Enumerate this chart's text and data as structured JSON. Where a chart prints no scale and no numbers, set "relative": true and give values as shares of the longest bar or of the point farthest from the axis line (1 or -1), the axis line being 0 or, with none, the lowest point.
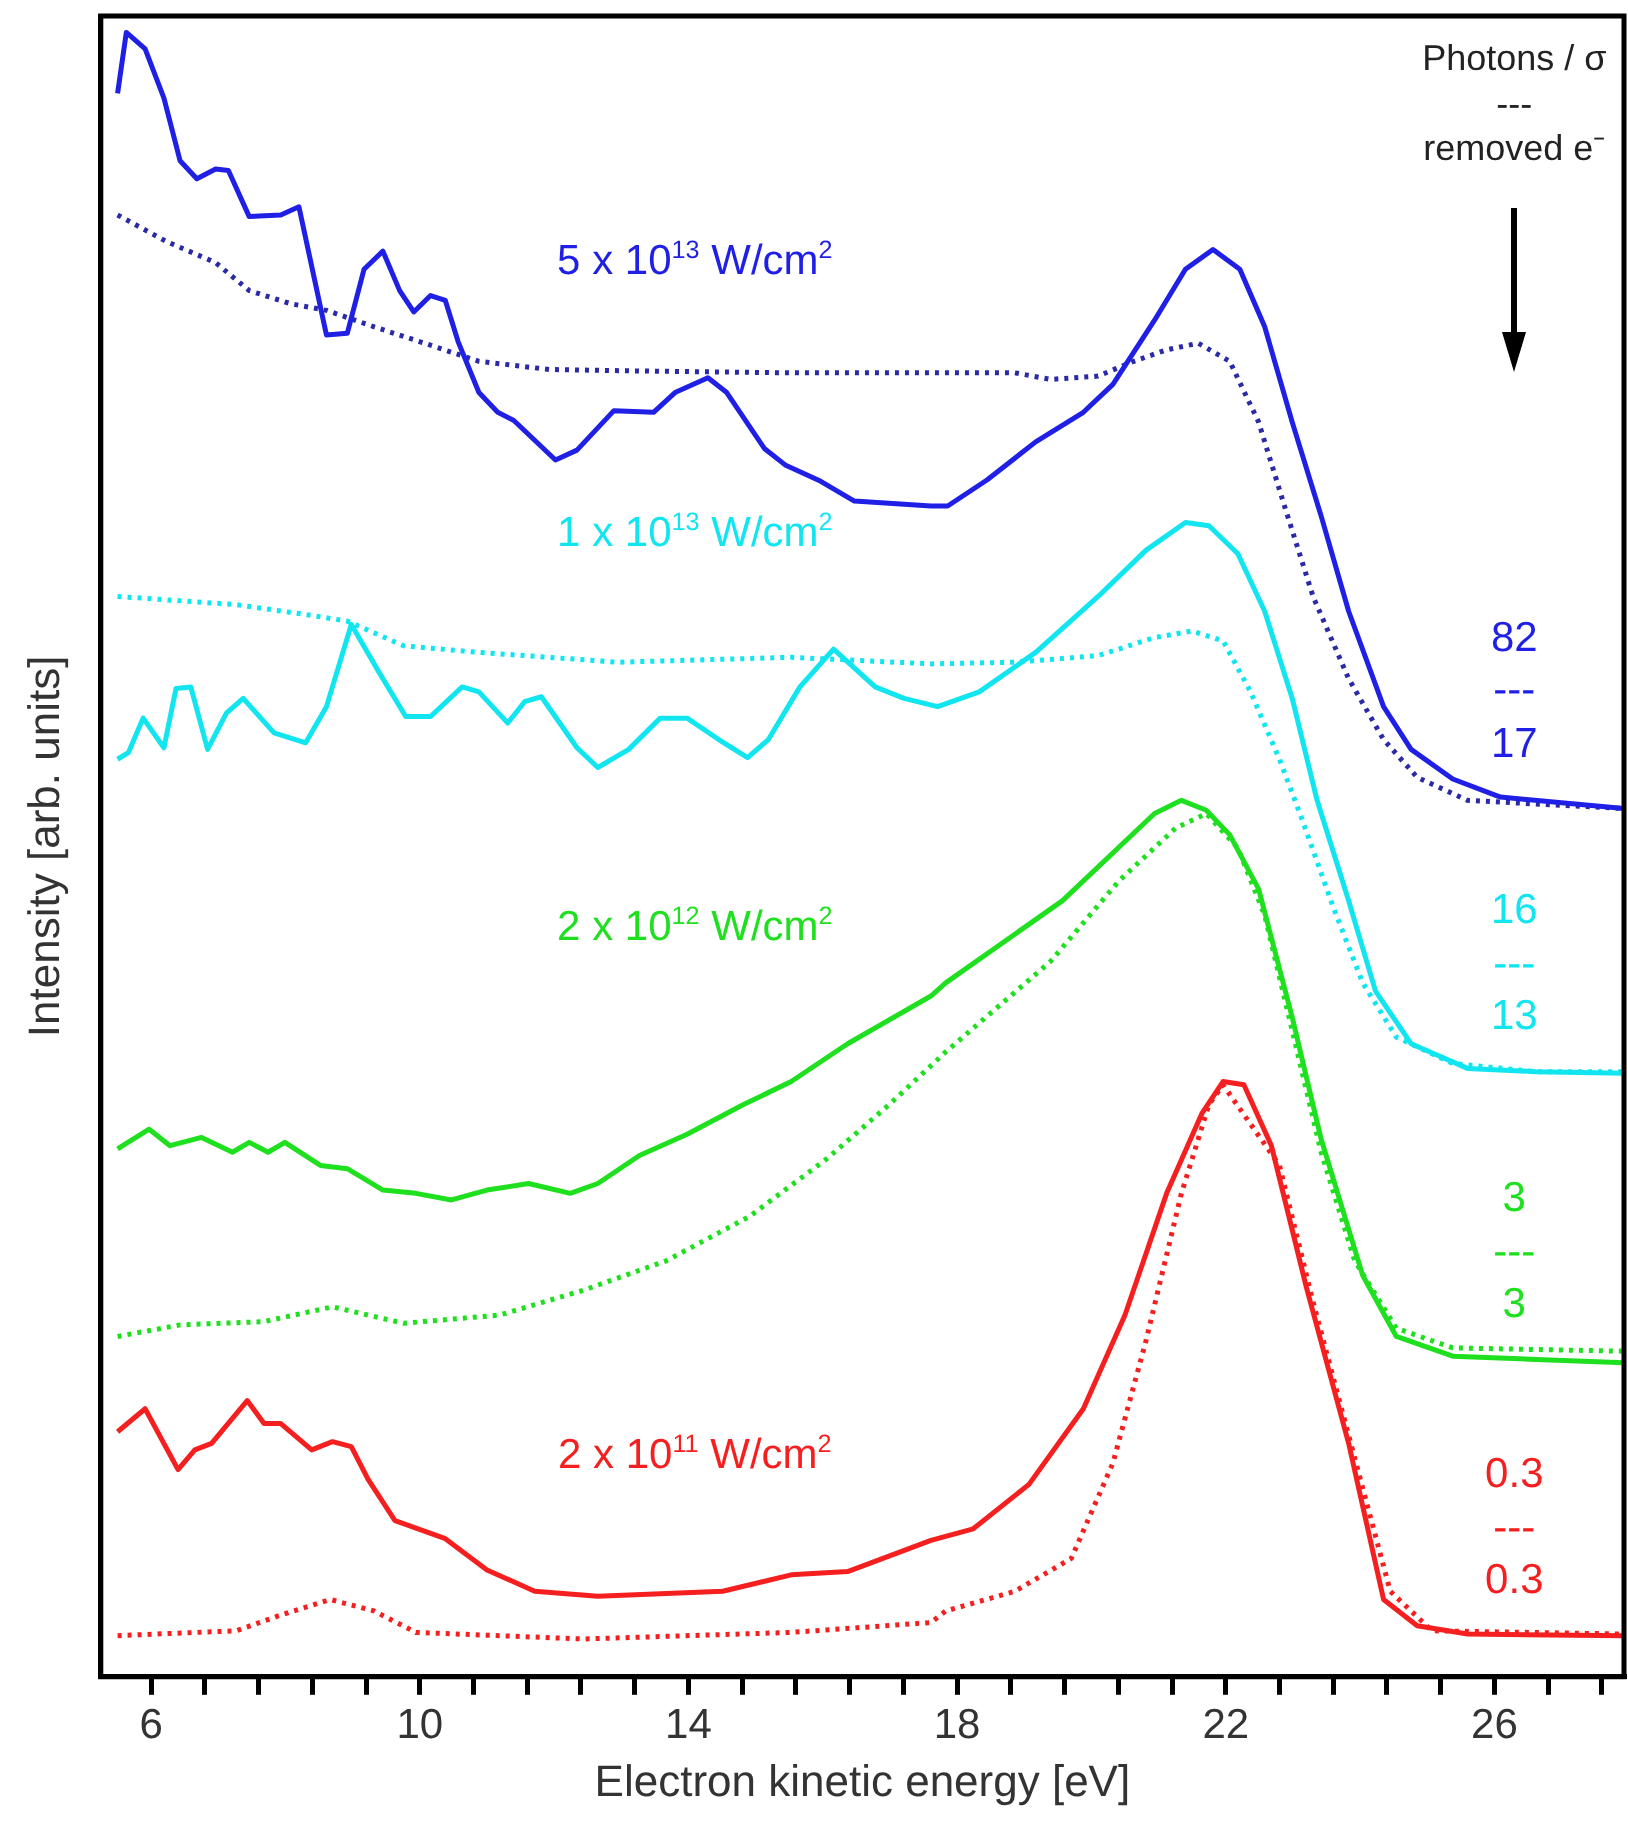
{
  "chart_data": {
    "type": "line",
    "relative": true,
    "xlabel": "Electron kinetic energy [eV]",
    "ylabel": "Intensity [arb. units]",
    "legend_title": "Photons / σ\n---\nremoved e⁻",
    "legend": false,
    "grid": false,
    "line_style": "solid",
    "xlim": [
      5.25,
      27.93
    ],
    "xticks": [
      6,
      {
        "value": 6.8,
        "label": null
      },
      {
        "value": 7.6,
        "label": null
      },
      {
        "value": 8.4,
        "label": null
      },
      {
        "value": 9.2,
        "label": null
      },
      10,
      {
        "value": 10.8,
        "label": null
      },
      {
        "value": 11.6,
        "label": null
      },
      {
        "value": 12.4,
        "label": null
      },
      {
        "value": 13.2,
        "label": null
      },
      14,
      {
        "value": 14.8,
        "label": null
      },
      {
        "value": 15.6,
        "label": null
      },
      {
        "value": 16.4,
        "label": null
      },
      {
        "value": 17.2,
        "label": null
      },
      18,
      {
        "value": 18.8,
        "label": null
      },
      {
        "value": 19.6,
        "label": null
      },
      {
        "value": 20.4,
        "label": null
      },
      {
        "value": 21.2,
        "label": null
      },
      22,
      {
        "value": 22.8,
        "label": null
      },
      {
        "value": 23.6,
        "label": null
      },
      {
        "value": 24.4,
        "label": null
      },
      {
        "value": 25.2,
        "label": null
      },
      26,
      {
        "value": 26.8,
        "label": null
      },
      {
        "value": 27.6,
        "label": null
      }
    ],
    "series": [
      {
        "name": "5 x 10$^{13}$ W/cm$^{2}$",
        "color": "#1f1fe6",
        "x": [
          5.5,
          5.63,
          5.91,
          6.19,
          6.43,
          6.68,
          6.96,
          7.15,
          7.46,
          7.93,
          8.2,
          8.61,
          8.92,
          9.17,
          9.45,
          9.7,
          9.91,
          10.16,
          10.38,
          10.57,
          10.88,
          11.16,
          11.4,
          12.02,
          12.34,
          12.89,
          13.48,
          13.8,
          14.29,
          14.57,
          15.13,
          15.44,
          15.97,
          16.47,
          17.61,
          17.86,
          18.45,
          19.17,
          19.88,
          20.32,
          20.94,
          21.4,
          21.81,
          22.21,
          22.58,
          22.99,
          23.42,
          23.83,
          24.35,
          24.76,
          25.38,
          26.09,
          27.93
        ],
        "values": [
          0.963,
          1.0,
          0.99,
          0.96,
          0.922,
          0.911,
          0.917,
          0.916,
          0.888,
          0.889,
          0.894,
          0.816,
          0.817,
          0.856,
          0.867,
          0.843,
          0.83,
          0.84,
          0.837,
          0.812,
          0.781,
          0.769,
          0.764,
          0.74,
          0.746,
          0.77,
          0.769,
          0.781,
          0.79,
          0.781,
          0.747,
          0.737,
          0.727,
          0.715,
          0.712,
          0.712,
          0.728,
          0.751,
          0.769,
          0.786,
          0.825,
          0.856,
          0.868,
          0.856,
          0.821,
          0.763,
          0.706,
          0.648,
          0.59,
          0.564,
          0.546,
          0.535,
          0.528
        ]
      },
      {
        "color": "#2a2aa8",
        "line_style": "dotted",
        "x": [
          5.5,
          6.22,
          6.96,
          7.46,
          8.08,
          8.61,
          9.32,
          10.07,
          10.88,
          11.93,
          13.48,
          15.53,
          17.3,
          18.86,
          19.39,
          20.1,
          20.63,
          21.12,
          21.59,
          22.06,
          22.49,
          22.89,
          23.3,
          23.83,
          24.35,
          24.85,
          25.6,
          27.93
        ],
        "values": [
          0.889,
          0.873,
          0.86,
          0.843,
          0.835,
          0.831,
          0.821,
          0.811,
          0.8,
          0.795,
          0.794,
          0.793,
          0.793,
          0.793,
          0.789,
          0.791,
          0.8,
          0.807,
          0.811,
          0.8,
          0.763,
          0.71,
          0.657,
          0.607,
          0.57,
          0.547,
          0.533,
          0.528
        ]
      },
      {
        "name": "1 x 10$^{13}$ W/cm$^{2}$",
        "color": "#11e5f0",
        "x": [
          5.5,
          5.66,
          5.88,
          6.19,
          6.37,
          6.59,
          6.84,
          7.12,
          7.37,
          7.83,
          8.3,
          8.61,
          8.98,
          9.39,
          9.79,
          10.16,
          10.63,
          10.88,
          11.31,
          11.56,
          11.81,
          12.34,
          12.65,
          13.11,
          13.58,
          13.98,
          14.45,
          14.88,
          15.19,
          15.66,
          16.16,
          16.78,
          17.21,
          17.71,
          18.33,
          19.17,
          20.1,
          20.81,
          21.4,
          21.75,
          22.18,
          22.58,
          22.99,
          23.36,
          23.83,
          24.23,
          24.76,
          25.6,
          26.62,
          27.93
        ],
        "values": [
          0.558,
          0.562,
          0.583,
          0.565,
          0.601,
          0.602,
          0.564,
          0.586,
          0.595,
          0.574,
          0.568,
          0.59,
          0.64,
          0.611,
          0.584,
          0.584,
          0.602,
          0.599,
          0.58,
          0.593,
          0.596,
          0.565,
          0.553,
          0.564,
          0.583,
          0.583,
          0.57,
          0.559,
          0.57,
          0.602,
          0.625,
          0.602,
          0.595,
          0.59,
          0.599,
          0.623,
          0.657,
          0.685,
          0.702,
          0.7,
          0.683,
          0.648,
          0.595,
          0.533,
          0.472,
          0.417,
          0.385,
          0.37,
          0.368,
          0.367
        ]
      },
      {
        "color": "#11e5f0",
        "line_style": "dotted",
        "x": [
          5.5,
          7.27,
          8.3,
          8.92,
          9.76,
          10.88,
          12.96,
          15.53,
          17.61,
          18.86,
          20.1,
          20.94,
          21.5,
          21.96,
          22.37,
          22.8,
          23.14,
          23.61,
          24.04,
          24.54,
          25.38,
          26.62,
          27.93
        ],
        "values": [
          0.657,
          0.652,
          0.646,
          0.642,
          0.627,
          0.623,
          0.617,
          0.62,
          0.616,
          0.617,
          0.621,
          0.632,
          0.636,
          0.63,
          0.599,
          0.558,
          0.521,
          0.467,
          0.422,
          0.389,
          0.373,
          0.368,
          0.368
        ]
      },
      {
        "name": "2 x 10$^{12}$ W/cm$^{2}$",
        "color": "#1ee01e",
        "x": [
          5.5,
          5.97,
          6.28,
          6.75,
          7.21,
          7.46,
          7.74,
          7.99,
          8.52,
          8.92,
          9.45,
          9.94,
          10.47,
          11.0,
          11.62,
          12.24,
          12.65,
          13.27,
          13.98,
          14.82,
          15.53,
          16.37,
          17.61,
          17.83,
          19.57,
          20.94,
          21.34,
          21.71,
          22.06,
          22.49,
          22.99,
          23.42,
          24.04,
          24.54,
          25.38,
          26.62,
          27.93
        ],
        "values": [
          0.321,
          0.333,
          0.323,
          0.328,
          0.319,
          0.325,
          0.319,
          0.325,
          0.311,
          0.309,
          0.296,
          0.294,
          0.29,
          0.296,
          0.3,
          0.294,
          0.3,
          0.317,
          0.33,
          0.348,
          0.362,
          0.385,
          0.414,
          0.422,
          0.472,
          0.525,
          0.533,
          0.527,
          0.512,
          0.479,
          0.401,
          0.327,
          0.244,
          0.207,
          0.195,
          0.193,
          0.191
        ]
      },
      {
        "color": "#1ee01e",
        "line_style": "dotted",
        "x": [
          5.5,
          6.43,
          7.68,
          8.7,
          9.76,
          11.19,
          12.43,
          13.67,
          14.91,
          16.06,
          16.99,
          17.83,
          19.39,
          20.41,
          21.25,
          21.71,
          22.18,
          22.58,
          22.99,
          23.42,
          23.92,
          24.54,
          25.38,
          27.93
        ],
        "values": [
          0.207,
          0.214,
          0.216,
          0.225,
          0.215,
          0.22,
          0.235,
          0.253,
          0.28,
          0.315,
          0.348,
          0.38,
          0.435,
          0.484,
          0.516,
          0.525,
          0.504,
          0.463,
          0.393,
          0.319,
          0.253,
          0.212,
          0.2,
          0.198
        ]
      },
      {
        "name": "2 x 10$^{11}$ W/cm$^{2}$",
        "color": "#f51f1f",
        "x": [
          5.5,
          5.91,
          6.4,
          6.65,
          6.9,
          7.43,
          7.68,
          7.93,
          8.39,
          8.7,
          8.98,
          9.23,
          9.63,
          10.38,
          11.0,
          11.71,
          12.65,
          14.51,
          15.53,
          16.37,
          17.61,
          18.24,
          19.07,
          19.88,
          20.5,
          21.12,
          21.65,
          21.96,
          22.27,
          22.68,
          23.2,
          23.83,
          24.35,
          24.85,
          25.6,
          27.93
        ],
        "values": [
          0.149,
          0.163,
          0.126,
          0.138,
          0.142,
          0.168,
          0.154,
          0.154,
          0.138,
          0.143,
          0.14,
          0.12,
          0.095,
          0.084,
          0.065,
          0.052,
          0.049,
          0.052,
          0.062,
          0.064,
          0.083,
          0.09,
          0.117,
          0.163,
          0.22,
          0.294,
          0.343,
          0.362,
          0.36,
          0.323,
          0.237,
          0.142,
          0.047,
          0.031,
          0.026,
          0.025
        ]
      },
      {
        "color": "#f51f1f",
        "line_style": "dotted",
        "x": [
          5.5,
          7.27,
          7.89,
          8.67,
          9.32,
          9.94,
          12.43,
          15.53,
          17.61,
          17.83,
          18.86,
          19.7,
          20.32,
          20.81,
          21.34,
          21.75,
          21.96,
          22.8,
          23.3,
          23.92,
          24.45,
          25.07,
          27.93
        ],
        "values": [
          0.025,
          0.028,
          0.037,
          0.047,
          0.04,
          0.027,
          0.023,
          0.027,
          0.033,
          0.04,
          0.052,
          0.072,
          0.13,
          0.204,
          0.294,
          0.348,
          0.36,
          0.311,
          0.228,
          0.133,
          0.052,
          0.028,
          0.026
        ]
      }
    ],
    "annotations": [
      "82\n---\n17",
      "16\n---\n13",
      "3\n---\n3",
      "0.3\n---\n0.3"
    ]
  }
}
